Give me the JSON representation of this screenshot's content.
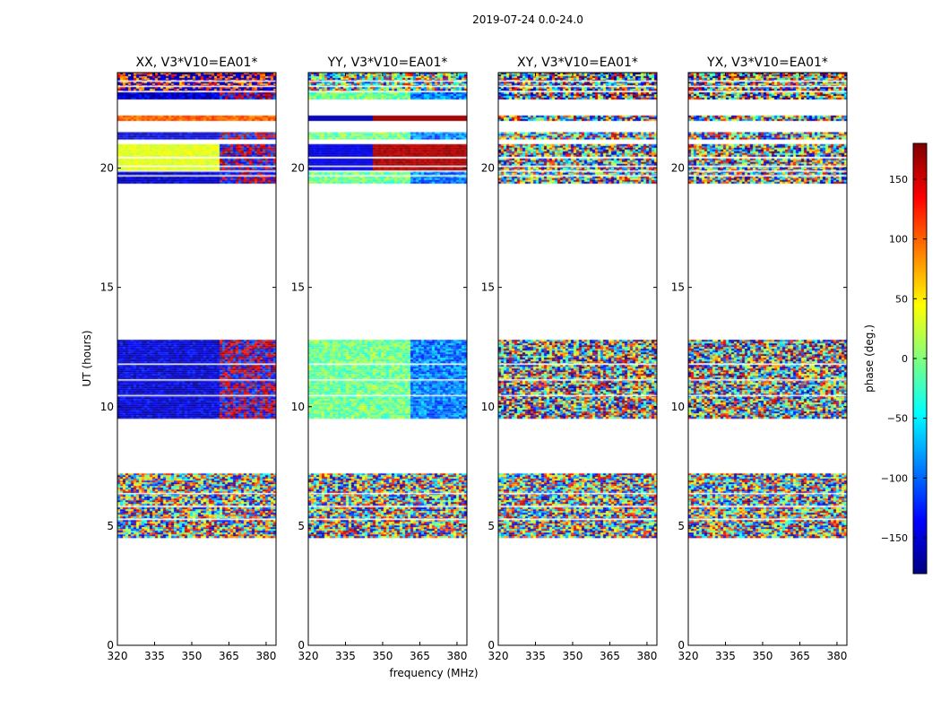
{
  "chart_data": {
    "type": "heatmap",
    "title": "2019-07-24 0.0-24.0",
    "xlabel": "frequency (MHz)",
    "ylabel": "UT (hours)",
    "xlim": [
      320,
      384
    ],
    "ylim": [
      0,
      24
    ],
    "xticks": [
      "320",
      "335",
      "350",
      "365",
      "380"
    ],
    "yticks": [
      "0",
      "5",
      "10",
      "15",
      "20"
    ],
    "panels": [
      {
        "title": "XX, V3*V10=EA01*",
        "pattern": "XX"
      },
      {
        "title": "YY, V3*V10=EA01*",
        "pattern": "YY"
      },
      {
        "title": "XY, V3*V10=EA01*",
        "pattern": "noise"
      },
      {
        "title": "YX, V3*V10=EA01*",
        "pattern": "noise"
      }
    ],
    "data_time_ranges_hours": [
      [
        4.5,
        7.2
      ],
      [
        9.5,
        12.8
      ],
      [
        19.4,
        20.4
      ],
      [
        20.5,
        21.0
      ],
      [
        21.2,
        21.5
      ],
      [
        22.0,
        22.2
      ],
      [
        22.9,
        24.0
      ]
    ],
    "colorbar": {
      "label": "phase (deg.)",
      "min": -180,
      "max": 180,
      "ticks": [
        "150",
        "100",
        "50",
        "0",
        "−50",
        "−100",
        "−150"
      ],
      "colormap": "jet"
    }
  }
}
